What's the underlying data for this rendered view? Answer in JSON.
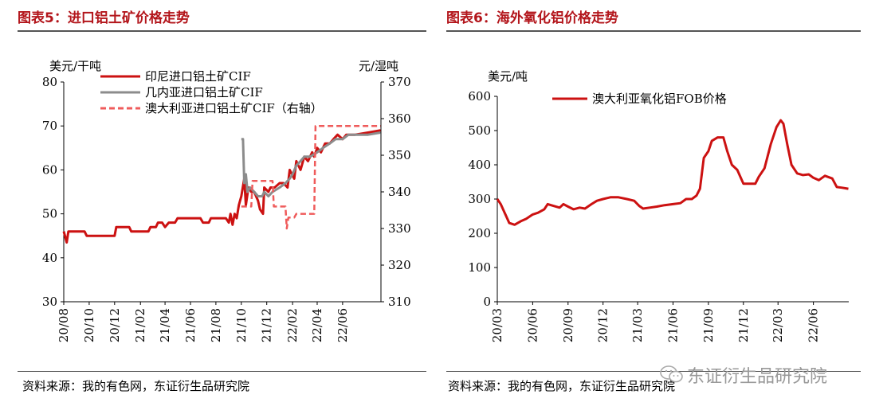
{
  "panel1": {
    "title": "图表5：进口铝土矿价格走势",
    "source": "资料来源：我的有色网，东证衍生品研究院"
  },
  "panel2": {
    "title": "图表6：海外氧化铝价格走势",
    "source": "资料来源：我的有色网，东证衍生品研究院"
  },
  "watermark": "东证衍生品研究院",
  "colors": {
    "title_red": "#b3151b",
    "series_red": "#cc1111",
    "series_gray": "#8c8c8c",
    "series_pink": "#ef5b5b"
  },
  "chart_data": [
    {
      "type": "line",
      "ylabel": "美元/干吨",
      "y2label": "元/湿吨",
      "ylim": [
        30,
        80
      ],
      "yticks": [
        30,
        40,
        50,
        60,
        70,
        80
      ],
      "y2lim": [
        310,
        370
      ],
      "y2ticks": [
        310,
        320,
        330,
        340,
        350,
        360,
        370
      ],
      "xlim": [
        "2020-08",
        "2022-09"
      ],
      "xticks": [
        "20/08",
        "20/10",
        "20/12",
        "21/02",
        "21/04",
        "21/06",
        "21/08",
        "21/10",
        "21/12",
        "22/02",
        "22/04",
        "22/06"
      ],
      "legend_position": "top-left",
      "series": [
        {
          "name": "印尼进口铝土矿CIF",
          "axis": "left",
          "color": "#cc1111",
          "style": "solid",
          "points": [
            [
              "2020-08-01",
              46
            ],
            [
              "2020-08-08",
              43.5
            ],
            [
              "2020-08-12",
              46
            ],
            [
              "2020-09-20",
              46
            ],
            [
              "2020-09-25",
              45
            ],
            [
              "2020-12-01",
              45
            ],
            [
              "2020-12-05",
              47
            ],
            [
              "2021-01-05",
              47
            ],
            [
              "2021-01-10",
              46
            ],
            [
              "2021-02-20",
              46
            ],
            [
              "2021-02-25",
              47
            ],
            [
              "2021-03-10",
              47
            ],
            [
              "2021-03-15",
              48
            ],
            [
              "2021-03-25",
              48
            ],
            [
              "2021-04-01",
              47
            ],
            [
              "2021-04-10",
              48
            ],
            [
              "2021-04-25",
              48
            ],
            [
              "2021-05-01",
              49
            ],
            [
              "2021-06-25",
              49
            ],
            [
              "2021-07-01",
              48
            ],
            [
              "2021-07-15",
              48
            ],
            [
              "2021-07-20",
              49
            ],
            [
              "2021-08-25",
              49
            ],
            [
              "2021-09-01",
              48
            ],
            [
              "2021-09-05",
              50
            ],
            [
              "2021-09-10",
              47.5
            ],
            [
              "2021-09-15",
              50
            ],
            [
              "2021-09-20",
              49
            ],
            [
              "2021-09-25",
              52
            ],
            [
              "2021-10-01",
              54
            ],
            [
              "2021-10-08",
              58
            ],
            [
              "2021-10-12",
              52
            ],
            [
              "2021-10-18",
              56
            ],
            [
              "2021-10-25",
              55
            ],
            [
              "2021-11-01",
              55
            ],
            [
              "2021-11-10",
              53
            ],
            [
              "2021-11-15",
              51
            ],
            [
              "2021-11-22",
              50
            ],
            [
              "2021-11-25",
              56
            ],
            [
              "2021-12-05",
              55
            ],
            [
              "2021-12-10",
              56
            ],
            [
              "2021-12-20",
              56
            ],
            [
              "2022-01-01",
              57
            ],
            [
              "2022-01-10",
              57
            ],
            [
              "2022-01-20",
              56
            ],
            [
              "2022-01-25",
              60
            ],
            [
              "2022-02-05",
              58
            ],
            [
              "2022-02-10",
              62
            ],
            [
              "2022-02-20",
              60
            ],
            [
              "2022-03-01",
              63
            ],
            [
              "2022-03-10",
              62
            ],
            [
              "2022-03-20",
              64
            ],
            [
              "2022-03-25",
              63
            ],
            [
              "2022-04-01",
              65
            ],
            [
              "2022-04-10",
              64
            ],
            [
              "2022-04-20",
              66
            ],
            [
              "2022-05-01",
              66
            ],
            [
              "2022-05-10",
              67
            ],
            [
              "2022-05-20",
              68
            ],
            [
              "2022-06-01",
              67
            ],
            [
              "2022-06-10",
              68
            ],
            [
              "2022-07-01",
              68
            ],
            [
              "2022-08-01",
              68.5
            ],
            [
              "2022-08-31",
              69
            ]
          ]
        },
        {
          "name": "几内亚进口铝土矿CIF",
          "axis": "left",
          "color": "#8c8c8c",
          "style": "solid",
          "points": [
            [
              "2021-10-01",
              67
            ],
            [
              "2021-10-05",
              67
            ],
            [
              "2021-10-08",
              57
            ],
            [
              "2021-10-12",
              59
            ],
            [
              "2021-10-16",
              55
            ],
            [
              "2021-10-22",
              56
            ],
            [
              "2021-11-01",
              55
            ],
            [
              "2021-11-10",
              54
            ],
            [
              "2021-11-20",
              54
            ],
            [
              "2021-11-25",
              55
            ],
            [
              "2021-12-05",
              54
            ],
            [
              "2021-12-15",
              55
            ],
            [
              "2022-01-01",
              56
            ],
            [
              "2022-01-15",
              57
            ],
            [
              "2022-01-25",
              58
            ],
            [
              "2022-02-01",
              59
            ],
            [
              "2022-02-10",
              61
            ],
            [
              "2022-02-20",
              62
            ],
            [
              "2022-03-01",
              63
            ],
            [
              "2022-03-15",
              63
            ],
            [
              "2022-04-01",
              64
            ],
            [
              "2022-04-15",
              65
            ],
            [
              "2022-05-01",
              66
            ],
            [
              "2022-05-15",
              67
            ],
            [
              "2022-06-01",
              67
            ],
            [
              "2022-06-15",
              68
            ],
            [
              "2022-07-01",
              68
            ],
            [
              "2022-08-01",
              68
            ],
            [
              "2022-08-31",
              68.5
            ]
          ]
        },
        {
          "name": "澳大利亚进口铝土矿CIF（右轴）",
          "axis": "right",
          "color": "#ef5b5b",
          "style": "dashed",
          "points": [
            [
              "2021-10-01",
              336
            ],
            [
              "2021-10-25",
              336
            ],
            [
              "2021-10-28",
              343
            ],
            [
              "2021-12-15",
              343
            ],
            [
              "2021-12-18",
              336
            ],
            [
              "2022-01-15",
              336
            ],
            [
              "2022-01-18",
              330
            ],
            [
              "2022-01-22",
              333
            ],
            [
              "2022-02-05",
              333
            ],
            [
              "2022-02-10",
              334
            ],
            [
              "2022-03-25",
              334
            ],
            [
              "2022-03-28",
              358
            ],
            [
              "2022-08-31",
              358
            ]
          ]
        }
      ]
    },
    {
      "type": "line",
      "ylabel": "美元/吨",
      "ylim": [
        0,
        600
      ],
      "yticks": [
        0,
        100,
        200,
        300,
        400,
        500,
        600
      ],
      "xlim": [
        "2020-03",
        "2022-09"
      ],
      "xticks": [
        "20/03",
        "20/06",
        "20/09",
        "20/12",
        "21/03",
        "21/06",
        "21/09",
        "21/12",
        "22/03",
        "22/06"
      ],
      "legend_position": "top-left",
      "series": [
        {
          "name": "澳大利亚氧化铝FOB价格",
          "color": "#cc1111",
          "style": "solid",
          "points": [
            [
              "2020-03-01",
              300
            ],
            [
              "2020-03-10",
              285
            ],
            [
              "2020-03-20",
              260
            ],
            [
              "2020-04-01",
              230
            ],
            [
              "2020-04-15",
              225
            ],
            [
              "2020-05-01",
              235
            ],
            [
              "2020-05-15",
              242
            ],
            [
              "2020-06-01",
              255
            ],
            [
              "2020-06-15",
              260
            ],
            [
              "2020-07-01",
              270
            ],
            [
              "2020-07-10",
              285
            ],
            [
              "2020-07-25",
              280
            ],
            [
              "2020-08-10",
              275
            ],
            [
              "2020-08-20",
              285
            ],
            [
              "2020-09-01",
              278
            ],
            [
              "2020-09-15",
              270
            ],
            [
              "2020-10-01",
              275
            ],
            [
              "2020-10-15",
              272
            ],
            [
              "2020-11-01",
              285
            ],
            [
              "2020-11-15",
              295
            ],
            [
              "2020-12-01",
              300
            ],
            [
              "2020-12-20",
              305
            ],
            [
              "2021-01-10",
              305
            ],
            [
              "2021-02-01",
              300
            ],
            [
              "2021-02-20",
              295
            ],
            [
              "2021-03-05",
              280
            ],
            [
              "2021-03-15",
              272
            ],
            [
              "2021-04-01",
              275
            ],
            [
              "2021-04-20",
              278
            ],
            [
              "2021-05-10",
              282
            ],
            [
              "2021-06-01",
              285
            ],
            [
              "2021-06-20",
              288
            ],
            [
              "2021-07-05",
              300
            ],
            [
              "2021-07-20",
              300
            ],
            [
              "2021-08-01",
              310
            ],
            [
              "2021-08-10",
              330
            ],
            [
              "2021-08-20",
              420
            ],
            [
              "2021-09-01",
              440
            ],
            [
              "2021-09-10",
              470
            ],
            [
              "2021-09-25",
              480
            ],
            [
              "2021-10-10",
              480
            ],
            [
              "2021-10-20",
              440
            ],
            [
              "2021-11-01",
              400
            ],
            [
              "2021-11-15",
              385
            ],
            [
              "2021-12-01",
              345
            ],
            [
              "2022-01-01",
              345
            ],
            [
              "2022-01-10",
              365
            ],
            [
              "2022-01-25",
              390
            ],
            [
              "2022-02-10",
              460
            ],
            [
              "2022-02-25",
              510
            ],
            [
              "2022-03-08",
              530
            ],
            [
              "2022-03-15",
              520
            ],
            [
              "2022-03-25",
              460
            ],
            [
              "2022-04-05",
              400
            ],
            [
              "2022-04-20",
              375
            ],
            [
              "2022-05-05",
              370
            ],
            [
              "2022-05-20",
              372
            ],
            [
              "2022-06-01",
              362
            ],
            [
              "2022-06-15",
              355
            ],
            [
              "2022-07-01",
              368
            ],
            [
              "2022-07-20",
              360
            ],
            [
              "2022-08-01",
              335
            ],
            [
              "2022-08-15",
              333
            ],
            [
              "2022-08-31",
              330
            ]
          ]
        }
      ]
    }
  ]
}
